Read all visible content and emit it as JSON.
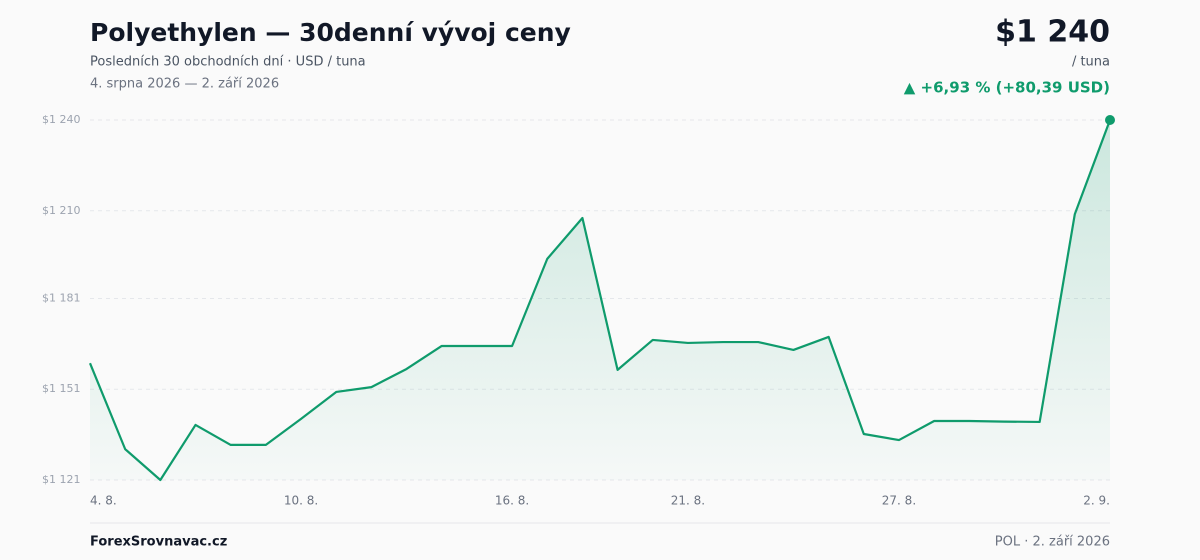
{
  "chart_data": {
    "type": "line",
    "title": "Polyethylen — 30denní vývoj ceny",
    "subtitle": "Posledních 30 obchodních dní · USD / tuna",
    "date_range": "4. srpna 2026 — 2. září 2026",
    "price": "$1 240",
    "price_unit": "/ tuna",
    "change": "▲ +6,93 % (+80,39 USD)",
    "source": "ForexSrovnavac.cz",
    "footer_note": "POL · 2. září 2026",
    "categories": [
      "4. 8.",
      null,
      null,
      null,
      null,
      null,
      "10. 8.",
      null,
      null,
      null,
      null,
      null,
      "16. 8.",
      null,
      null,
      null,
      null,
      "21. 8.",
      null,
      null,
      null,
      null,
      null,
      "27. 8.",
      null,
      null,
      null,
      null,
      null,
      "2. 9."
    ],
    "series": [
      {
        "name": "Polyethylen",
        "color": "#0f9b6c",
        "values": [
          1159.61,
          1131.2,
          1121,
          1139.2,
          1132.6,
          1132.6,
          1141.2,
          1150.1,
          1151.7,
          1157.7,
          1165.3,
          1165.3,
          1165.3,
          1194.1,
          1207.6,
          1157.4,
          1167.3,
          1166.3,
          1166.6,
          1166.6,
          1164.0,
          1168.3,
          1136.2,
          1134.2,
          1140.5,
          1140.5,
          1140.3,
          1140.2,
          1208.9,
          1240
        ]
      }
    ],
    "ylim": [
      1121,
      1240
    ],
    "yticks": [
      {
        "value": 1121,
        "label": "$1 121"
      },
      {
        "value": 1151,
        "label": "$1 151"
      },
      {
        "value": 1181,
        "label": "$1 181"
      },
      {
        "value": 1210,
        "label": "$1 210"
      },
      {
        "value": 1240,
        "label": "$1 240"
      }
    ],
    "grid": true
  }
}
